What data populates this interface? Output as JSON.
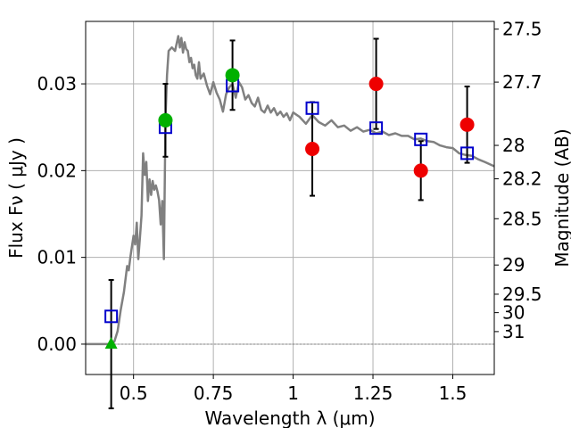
{
  "chart_data": {
    "type": "scatter",
    "xlabel": "Wavelength  λ (μm)",
    "ylabel": "Flux  Fν  ( μJy )",
    "ylabel_right": "Magnitude (AB)",
    "xlim": [
      0.35,
      1.63
    ],
    "ylim": [
      -0.0035,
      0.0372
    ],
    "grid": true,
    "x_ticks": [
      {
        "value": 0.5,
        "label": "0.5"
      },
      {
        "value": 0.75,
        "label": "0.75"
      },
      {
        "value": 1.0,
        "label": "1"
      },
      {
        "value": 1.25,
        "label": "1.25"
      },
      {
        "value": 1.5,
        "label": "1.5"
      }
    ],
    "y_ticks": [
      {
        "value": 0.0,
        "label": "0.00"
      },
      {
        "value": 0.01,
        "label": "0.01"
      },
      {
        "value": 0.02,
        "label": "0.02"
      },
      {
        "value": 0.03,
        "label": "0.03"
      }
    ],
    "y_right_ticks": [
      {
        "value": 27.5,
        "label": "27.5"
      },
      {
        "value": 27.7,
        "label": "27.7"
      },
      {
        "value": 28,
        "label": "28"
      },
      {
        "value": 28.2,
        "label": "28.2"
      },
      {
        "value": 28.5,
        "label": "28.5"
      },
      {
        "value": 29,
        "label": "29"
      },
      {
        "value": 29.5,
        "label": "29.5"
      },
      {
        "value": 30,
        "label": "30"
      },
      {
        "value": 31,
        "label": "31"
      }
    ],
    "colors": {
      "model": "#808080",
      "model_photometry": "#0000cc",
      "detections": "#00b000",
      "measurements": "#ee0000",
      "errorbars": "#000000",
      "grid": "#b0b0b0",
      "zero_line": "#808080"
    },
    "series": [
      {
        "kind": "line",
        "x": [
          0.35,
          0.4,
          0.43,
          0.44,
          0.45,
          0.46,
          0.47,
          0.48,
          0.485,
          0.49,
          0.5,
          0.505,
          0.51,
          0.515,
          0.52,
          0.525,
          0.53,
          0.535,
          0.54,
          0.545,
          0.55,
          0.555,
          0.56,
          0.565,
          0.57,
          0.575,
          0.58,
          0.585,
          0.59,
          0.595,
          0.6,
          0.605,
          0.61,
          0.62,
          0.63,
          0.64,
          0.645,
          0.65,
          0.655,
          0.66,
          0.665,
          0.67,
          0.675,
          0.68,
          0.685,
          0.69,
          0.695,
          0.7,
          0.705,
          0.71,
          0.72,
          0.73,
          0.74,
          0.75,
          0.76,
          0.77,
          0.78,
          0.79,
          0.8,
          0.81,
          0.82,
          0.83,
          0.84,
          0.85,
          0.86,
          0.87,
          0.88,
          0.89,
          0.9,
          0.91,
          0.92,
          0.93,
          0.94,
          0.95,
          0.96,
          0.97,
          0.98,
          0.99,
          1.0,
          1.02,
          1.04,
          1.06,
          1.08,
          1.1,
          1.12,
          1.14,
          1.16,
          1.18,
          1.2,
          1.22,
          1.24,
          1.26,
          1.28,
          1.3,
          1.32,
          1.34,
          1.36,
          1.38,
          1.4,
          1.42,
          1.44,
          1.46,
          1.48,
          1.5,
          1.52,
          1.54,
          1.56,
          1.58,
          1.6,
          1.63
        ],
        "y": [
          0.0,
          0.0,
          0.0,
          0.0003,
          0.0015,
          0.004,
          0.006,
          0.009,
          0.0085,
          0.01,
          0.0125,
          0.0115,
          0.014,
          0.0098,
          0.0122,
          0.0148,
          0.022,
          0.0195,
          0.021,
          0.0165,
          0.019,
          0.0172,
          0.0188,
          0.0178,
          0.0183,
          0.0176,
          0.0166,
          0.0138,
          0.0165,
          0.0098,
          0.026,
          0.031,
          0.0338,
          0.0342,
          0.0338,
          0.0355,
          0.0342,
          0.0353,
          0.0336,
          0.0348,
          0.034,
          0.0338,
          0.0325,
          0.033,
          0.0318,
          0.0322,
          0.031,
          0.0306,
          0.0325,
          0.0306,
          0.0312,
          0.0298,
          0.0288,
          0.0302,
          0.029,
          0.0282,
          0.0268,
          0.0288,
          0.0296,
          0.03,
          0.0284,
          0.0302,
          0.0296,
          0.0282,
          0.0287,
          0.0278,
          0.0274,
          0.0284,
          0.027,
          0.0267,
          0.0275,
          0.0267,
          0.0272,
          0.0264,
          0.0268,
          0.0262,
          0.0266,
          0.0258,
          0.0267,
          0.0262,
          0.0254,
          0.0264,
          0.0256,
          0.0252,
          0.0258,
          0.025,
          0.0252,
          0.0246,
          0.025,
          0.0245,
          0.0247,
          0.0243,
          0.0245,
          0.0241,
          0.0243,
          0.024,
          0.024,
          0.0236,
          0.0237,
          0.0234,
          0.0233,
          0.0229,
          0.0227,
          0.0226,
          0.022,
          0.0218,
          0.0217,
          0.0213,
          0.021,
          0.0205
        ]
      },
      {
        "kind": "model_photometry",
        "marker": "open-square",
        "x": [
          0.43,
          0.6,
          0.81,
          1.06,
          1.26,
          1.4,
          1.545
        ],
        "y": [
          0.0032,
          0.025,
          0.0298,
          0.0272,
          0.0249,
          0.0236,
          0.022
        ]
      },
      {
        "kind": "detections",
        "marker": "circle",
        "x": [
          0.6,
          0.81
        ],
        "y": [
          0.0258,
          0.031
        ],
        "yerr": [
          0.0042,
          0.004
        ]
      },
      {
        "kind": "upper_limit",
        "marker": "triangle",
        "x": [
          0.43
        ],
        "y": [
          0.0
        ],
        "yerr": [
          0.0074
        ]
      },
      {
        "kind": "measurements",
        "marker": "circle",
        "x": [
          1.06,
          1.26,
          1.4,
          1.545
        ],
        "y": [
          0.0225,
          0.03,
          0.02,
          0.0253
        ],
        "yerr": [
          0.0054,
          0.0052,
          0.0034,
          0.0044
        ]
      }
    ]
  }
}
